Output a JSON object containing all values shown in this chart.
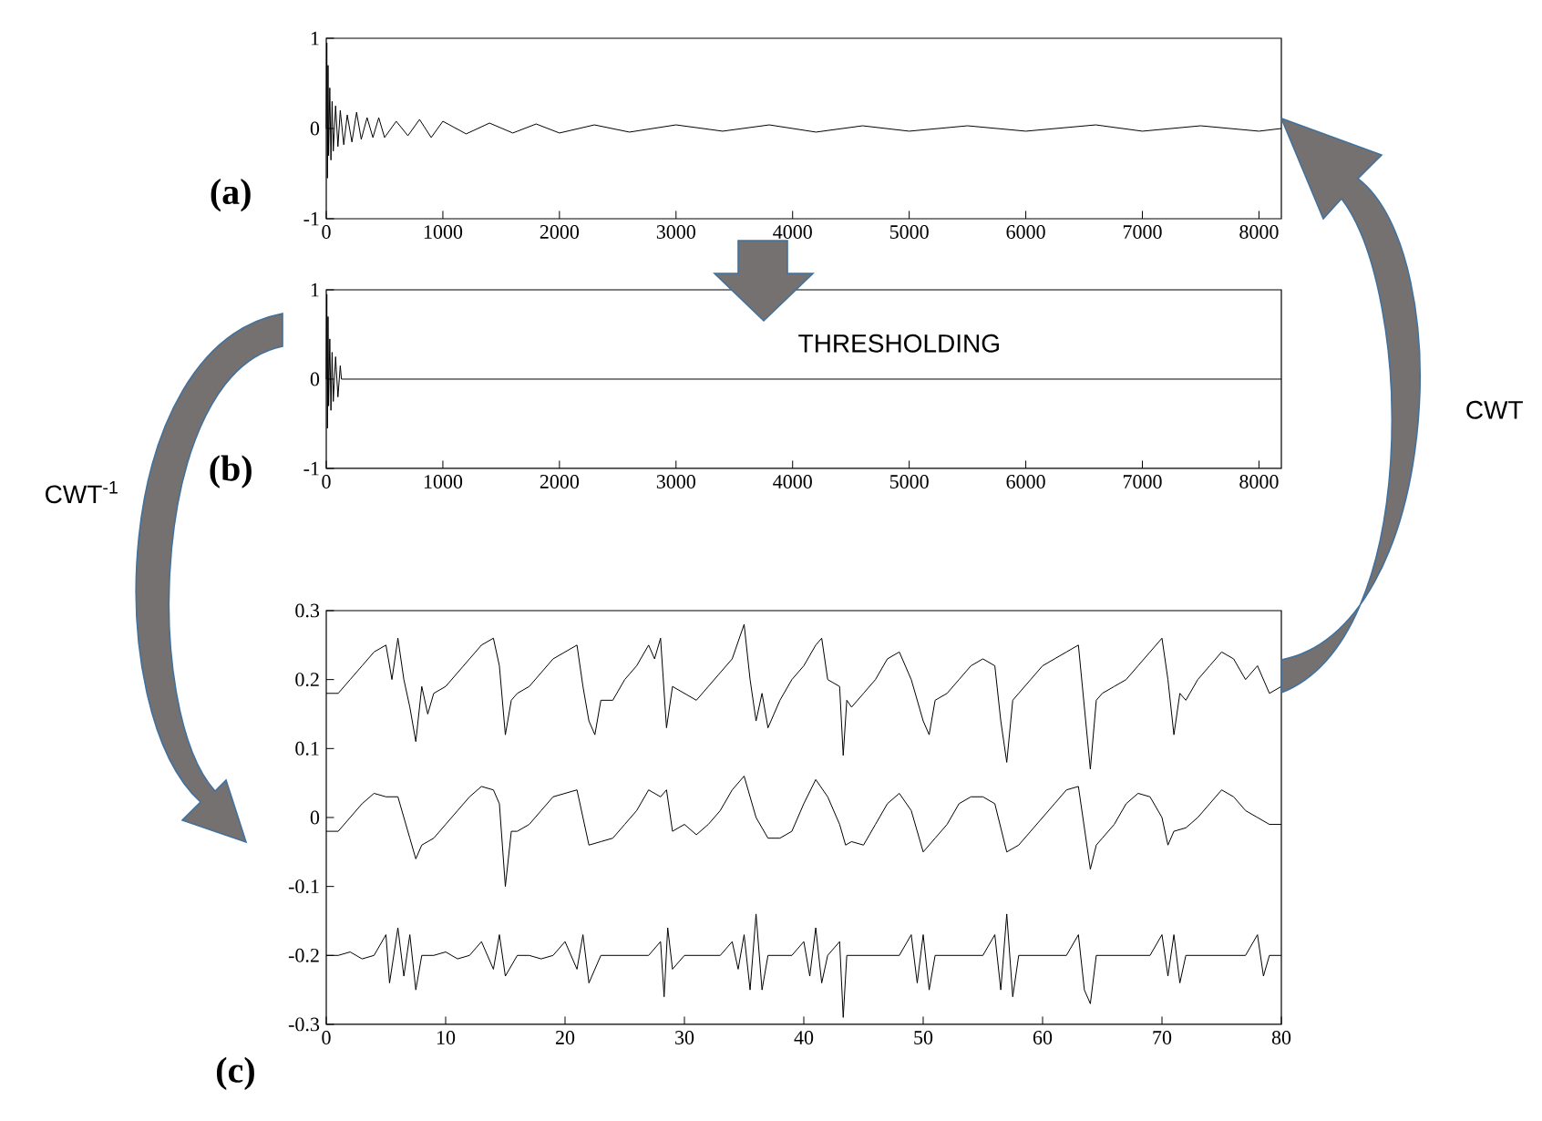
{
  "chart_data": [
    {
      "type": "line",
      "title": "(a)",
      "xlim": [
        0,
        8192
      ],
      "ylim": [
        -1,
        1
      ],
      "xticks": [
        0,
        1000,
        2000,
        3000,
        4000,
        5000,
        6000,
        7000,
        8000
      ],
      "yticks": [
        -1,
        0,
        1
      ],
      "marker": "none",
      "line_style": "solid",
      "series": [
        {
          "color": "#000000",
          "x": [
            0,
            5,
            10,
            15,
            20,
            30,
            40,
            50,
            60,
            80,
            100,
            120,
            150,
            180,
            220,
            260,
            300,
            350,
            400,
            450,
            500,
            600,
            700,
            800,
            900,
            1000,
            1200,
            1400,
            1600,
            1800,
            2000,
            2300,
            2600,
            3000,
            3400,
            3800,
            4200,
            4600,
            5000,
            5500,
            6000,
            6600,
            7000,
            7500,
            8000,
            8192
          ],
          "values": [
            0.0,
            0.95,
            -0.55,
            0.7,
            -0.3,
            0.45,
            -0.35,
            0.3,
            -0.25,
            0.25,
            -0.2,
            0.2,
            -0.18,
            0.15,
            -0.15,
            0.18,
            -0.12,
            0.12,
            -0.1,
            0.12,
            -0.1,
            0.08,
            -0.08,
            0.1,
            -0.1,
            0.08,
            -0.06,
            0.06,
            -0.05,
            0.05,
            -0.05,
            0.04,
            -0.04,
            0.04,
            -0.03,
            0.04,
            -0.04,
            0.03,
            -0.03,
            0.03,
            -0.03,
            0.04,
            -0.03,
            0.03,
            -0.03,
            0.0
          ]
        }
      ]
    },
    {
      "type": "line",
      "title": "(b)",
      "xlim": [
        0,
        8192
      ],
      "ylim": [
        -1,
        1
      ],
      "xticks": [
        0,
        1000,
        2000,
        3000,
        4000,
        5000,
        6000,
        7000,
        8000
      ],
      "yticks": [
        -1,
        0,
        1
      ],
      "marker": "none",
      "line_style": "solid",
      "annotations": [
        "THRESHOLDING"
      ],
      "series": [
        {
          "color": "#000000",
          "x": [
            0,
            5,
            10,
            15,
            20,
            30,
            40,
            50,
            60,
            80,
            100,
            120,
            130,
            8192
          ],
          "values": [
            0.0,
            0.95,
            -0.55,
            0.7,
            -0.3,
            0.45,
            -0.35,
            0.3,
            -0.25,
            0.25,
            -0.2,
            0.15,
            0.0,
            0.0
          ]
        }
      ]
    },
    {
      "type": "line",
      "title": "(c)",
      "xlim": [
        0,
        80
      ],
      "ylim": [
        -0.3,
        0.3
      ],
      "xticks": [
        0,
        10,
        20,
        30,
        40,
        50,
        60,
        70,
        80
      ],
      "yticks": [
        -0.3,
        -0.2,
        -0.1,
        0,
        0.1,
        0.2,
        0.3
      ],
      "marker": "none",
      "line_style": "solid",
      "annotations": [
        "CWT",
        "CWT$^{-1}$"
      ],
      "series": [
        {
          "color": "#000000",
          "x": [
            0,
            1,
            2,
            3,
            4,
            5,
            5.5,
            6,
            6.5,
            7,
            7.5,
            8,
            8.5,
            9,
            10,
            11,
            12,
            13,
            14,
            14.5,
            15,
            15.5,
            16,
            17,
            18,
            19,
            20,
            21,
            21.5,
            22,
            22.5,
            23,
            24,
            25,
            26,
            27,
            27.5,
            28,
            28.5,
            29,
            30,
            31,
            32,
            33,
            34,
            35,
            35.5,
            36,
            36.5,
            37,
            38,
            39,
            40,
            41,
            41.5,
            42,
            43,
            43.3,
            43.6,
            44,
            45,
            46,
            47,
            48,
            49,
            50,
            50.5,
            51,
            52,
            53,
            54,
            55,
            56,
            56.5,
            57,
            57.5,
            58,
            59,
            60,
            61,
            62,
            63,
            64,
            64.5,
            65,
            66,
            67,
            68,
            69,
            70,
            70.5,
            71,
            71.5,
            72,
            73,
            74,
            75,
            76,
            77,
            78,
            79,
            80
          ],
          "values": [
            0.18,
            0.18,
            0.2,
            0.22,
            0.24,
            0.25,
            0.2,
            0.26,
            0.2,
            0.16,
            0.11,
            0.19,
            0.15,
            0.18,
            0.19,
            0.21,
            0.23,
            0.25,
            0.26,
            0.22,
            0.12,
            0.17,
            0.18,
            0.19,
            0.21,
            0.23,
            0.24,
            0.25,
            0.19,
            0.14,
            0.12,
            0.17,
            0.17,
            0.2,
            0.22,
            0.25,
            0.23,
            0.26,
            0.13,
            0.19,
            0.18,
            0.17,
            0.19,
            0.21,
            0.23,
            0.28,
            0.2,
            0.14,
            0.18,
            0.13,
            0.17,
            0.2,
            0.22,
            0.25,
            0.26,
            0.2,
            0.19,
            0.09,
            0.17,
            0.16,
            0.18,
            0.2,
            0.23,
            0.24,
            0.2,
            0.14,
            0.12,
            0.17,
            0.18,
            0.2,
            0.22,
            0.23,
            0.22,
            0.14,
            0.08,
            0.17,
            0.18,
            0.2,
            0.22,
            0.23,
            0.24,
            0.25,
            0.07,
            0.17,
            0.18,
            0.19,
            0.2,
            0.22,
            0.24,
            0.26,
            0.2,
            0.12,
            0.18,
            0.17,
            0.2,
            0.22,
            0.24,
            0.23,
            0.2,
            0.22,
            0.18,
            0.19
          ]
        },
        {
          "color": "#000000",
          "x": [
            0,
            1,
            2,
            3,
            4,
            5,
            6,
            7,
            7.5,
            8,
            9,
            10,
            11,
            12,
            13,
            14,
            14.5,
            15,
            15.5,
            16,
            17,
            18,
            19,
            20,
            21,
            21.5,
            22,
            23,
            24,
            25,
            26,
            27,
            28,
            28.5,
            29,
            30,
            31,
            32,
            33,
            34,
            35,
            36,
            37,
            38,
            39,
            40,
            41,
            42,
            43,
            43.5,
            44,
            45,
            46,
            47,
            48,
            49,
            50,
            51,
            52,
            53,
            54,
            55,
            56,
            57,
            58,
            59,
            60,
            61,
            62,
            63,
            64,
            64.5,
            65,
            66,
            67,
            68,
            69,
            70,
            70.5,
            71,
            72,
            73,
            74,
            75,
            76,
            77,
            78,
            79,
            80
          ],
          "values": [
            -0.02,
            -0.02,
            0.0,
            0.02,
            0.035,
            0.03,
            0.03,
            -0.03,
            -0.06,
            -0.04,
            -0.03,
            -0.01,
            0.01,
            0.03,
            0.045,
            0.04,
            0.02,
            -0.1,
            -0.02,
            -0.02,
            -0.01,
            0.01,
            0.03,
            0.035,
            0.04,
            0.0,
            -0.04,
            -0.035,
            -0.03,
            -0.01,
            0.01,
            0.04,
            0.03,
            0.04,
            -0.02,
            -0.01,
            -0.025,
            -0.01,
            0.01,
            0.04,
            0.06,
            0.0,
            -0.03,
            -0.03,
            -0.02,
            0.02,
            0.055,
            0.03,
            -0.01,
            -0.04,
            -0.035,
            -0.04,
            -0.01,
            0.02,
            0.035,
            0.01,
            -0.05,
            -0.03,
            -0.01,
            0.02,
            0.03,
            0.03,
            0.02,
            -0.05,
            -0.04,
            -0.02,
            0.0,
            0.02,
            0.04,
            0.045,
            -0.075,
            -0.04,
            -0.03,
            -0.01,
            0.02,
            0.035,
            0.03,
            0.0,
            -0.04,
            -0.02,
            -0.015,
            0.0,
            0.02,
            0.04,
            0.03,
            0.01,
            0.0,
            -0.01,
            -0.01
          ]
        },
        {
          "color": "#000000",
          "x": [
            0,
            1,
            2,
            3,
            4,
            5,
            5.3,
            6,
            6.5,
            7,
            7.5,
            8,
            9,
            10,
            11,
            12,
            13,
            14,
            14.5,
            15,
            16,
            17,
            18,
            19,
            20,
            21,
            21.5,
            22,
            23,
            24,
            25,
            26,
            27,
            28,
            28.3,
            28.6,
            29,
            30,
            31,
            32,
            33,
            34,
            34.5,
            35,
            35.5,
            36,
            36.5,
            37,
            38,
            39,
            40,
            40.5,
            41,
            41.5,
            42,
            43,
            43.3,
            43.6,
            44,
            45,
            46,
            47,
            48,
            49,
            49.5,
            50,
            50.5,
            51,
            52,
            53,
            54,
            55,
            56,
            56.5,
            57,
            57.5,
            58,
            59,
            60,
            61,
            62,
            63,
            63.5,
            64,
            64.5,
            65,
            66,
            67,
            68,
            69,
            70,
            70.5,
            71,
            71.5,
            72,
            73,
            74,
            75,
            76,
            77,
            78,
            78.5,
            79,
            80
          ],
          "values": [
            -0.2,
            -0.2,
            -0.195,
            -0.205,
            -0.2,
            -0.17,
            -0.24,
            -0.16,
            -0.23,
            -0.17,
            -0.25,
            -0.2,
            -0.2,
            -0.195,
            -0.205,
            -0.2,
            -0.18,
            -0.22,
            -0.17,
            -0.23,
            -0.2,
            -0.2,
            -0.205,
            -0.2,
            -0.18,
            -0.22,
            -0.17,
            -0.24,
            -0.2,
            -0.2,
            -0.2,
            -0.2,
            -0.2,
            -0.18,
            -0.26,
            -0.16,
            -0.22,
            -0.2,
            -0.2,
            -0.2,
            -0.2,
            -0.18,
            -0.22,
            -0.17,
            -0.25,
            -0.14,
            -0.25,
            -0.2,
            -0.2,
            -0.2,
            -0.18,
            -0.23,
            -0.16,
            -0.24,
            -0.2,
            -0.18,
            -0.29,
            -0.2,
            -0.2,
            -0.2,
            -0.2,
            -0.2,
            -0.2,
            -0.17,
            -0.24,
            -0.17,
            -0.25,
            -0.2,
            -0.2,
            -0.2,
            -0.2,
            -0.2,
            -0.17,
            -0.25,
            -0.14,
            -0.26,
            -0.2,
            -0.2,
            -0.2,
            -0.2,
            -0.2,
            -0.17,
            -0.25,
            -0.27,
            -0.2,
            -0.2,
            -0.2,
            -0.2,
            -0.2,
            -0.2,
            -0.17,
            -0.23,
            -0.17,
            -0.24,
            -0.2,
            -0.2,
            -0.2,
            -0.2,
            -0.2,
            -0.2,
            -0.17,
            -0.23,
            -0.2,
            -0.2
          ]
        }
      ]
    }
  ]
}
